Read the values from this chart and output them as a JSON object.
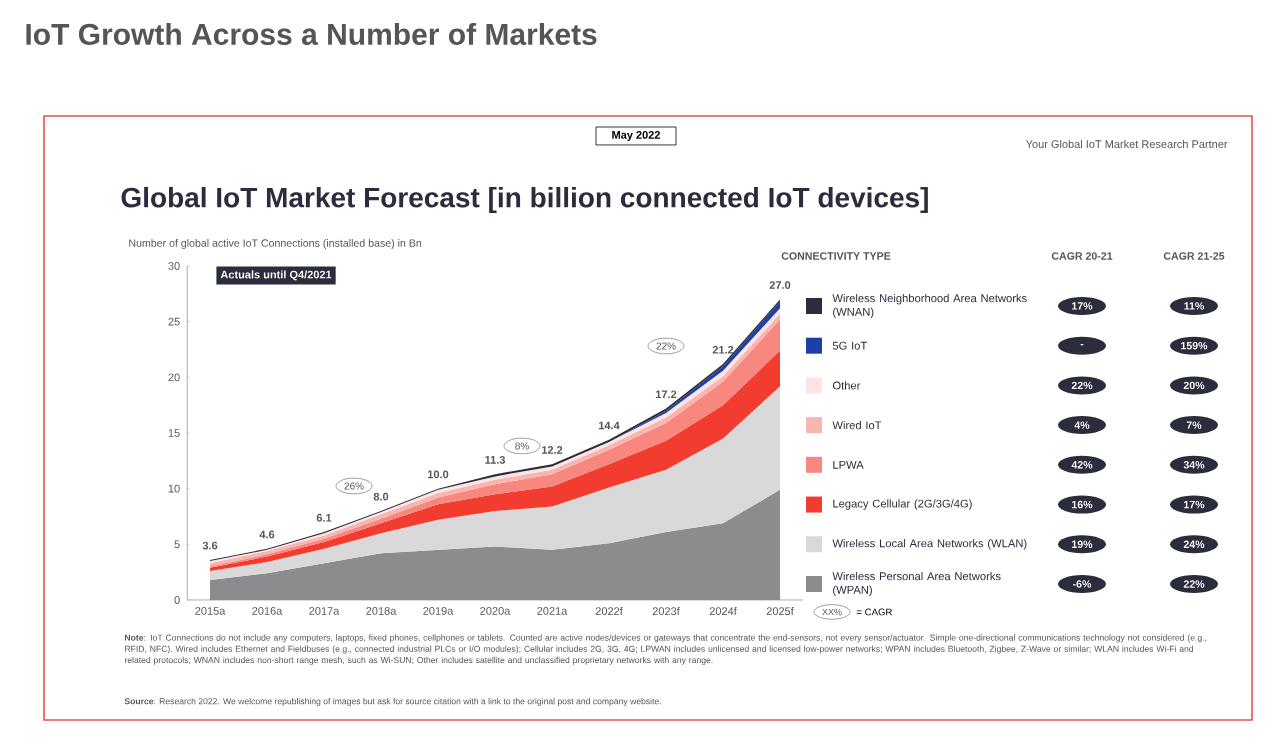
{
  "chart_data": [
    {
      "type": "area",
      "stacked": true,
      "title": "IoT Growth Across a Number of Markets",
      "subtitle": "Global IoT Market Forecast [in billion connected IoT devices]",
      "ylabel": "Number of global active IoT Connections (installed base) in Bn",
      "legend_title": "CONNECTIVITY TYPE",
      "legend": "right",
      "categories": [
        "2015a",
        "2016a",
        "2017a",
        "2018a",
        "2019a",
        "2020a",
        "2021a",
        "2022f",
        "2023f",
        "2024f",
        "2025f"
      ],
      "ylim": [
        0,
        30
      ],
      "yticks": [
        0,
        5,
        10,
        15,
        20,
        25,
        30
      ],
      "series": [
        {
          "name": "Wireless Personal Area Networks (WPAN)",
          "color": "#8c8c8e",
          "values": [
            1.8,
            2.4,
            3.3,
            4.2,
            4.5,
            4.8,
            4.5,
            5.1,
            6.1,
            6.9,
            9.9
          ]
        },
        {
          "name": "Wireless Local Area Networks (WLAN)",
          "color": "#d9d9d9",
          "values": [
            0.8,
            1.0,
            1.3,
            1.8,
            2.7,
            3.2,
            3.9,
            5.0,
            5.6,
            7.6,
            9.3
          ]
        },
        {
          "name": "Legacy Cellular (2G/3G/4G)",
          "color": "#f23c2f",
          "values": [
            0.3,
            0.5,
            0.6,
            0.9,
            1.4,
            1.5,
            1.8,
            2.1,
            2.6,
            3.0,
            3.2
          ]
        },
        {
          "name": "LPWA",
          "color": "#f7877f",
          "values": [
            0.1,
            0.2,
            0.3,
            0.4,
            0.6,
            0.9,
            1.1,
            1.3,
            1.6,
            2.1,
            2.8
          ]
        },
        {
          "name": "Wired IoT",
          "color": "#f9b5b0",
          "values": [
            0.3,
            0.3,
            0.3,
            0.4,
            0.4,
            0.4,
            0.4,
            0.4,
            0.5,
            0.5,
            0.5
          ]
        },
        {
          "name": "Other",
          "color": "#fde4e4",
          "values": [
            0.2,
            0.1,
            0.2,
            0.2,
            0.3,
            0.3,
            0.3,
            0.3,
            0.4,
            0.5,
            0.5
          ]
        },
        {
          "name": "5G IoT",
          "color": "#1f3fa8",
          "values": [
            0.0,
            0.0,
            0.0,
            0.0,
            0.0,
            0.0,
            0.0,
            0.0,
            0.2,
            0.4,
            0.6
          ]
        },
        {
          "name": "Wireless Neighborhood Area Networks (WNAN)",
          "color": "#2b2d3c",
          "values": [
            0.1,
            0.1,
            0.1,
            0.1,
            0.1,
            0.2,
            0.2,
            0.2,
            0.2,
            0.2,
            0.2
          ]
        }
      ],
      "totals": [
        "3.6",
        "4.6",
        "6.1",
        "8.0",
        "10.0",
        "11.3",
        "12.2",
        "14.4",
        "17.2",
        "21.2",
        "27.0"
      ],
      "annotations": [
        "Actuals until Q4/2021",
        "May 2022",
        "Your Global IoT Market Research Partner",
        "**Note**: IoT Connections do not include any computers, laptops, fixed phones, cellphones or tablets. Counted are active nodes/devices or gateways that concentrate the end-sensors, not every sensor/actuator. Simple one-directional communications technology not considered (e.g., RFID, NFC). Wired includes Ethernet and Fieldbuses (e.g., connected industrial PLCs or I/O modules); Cellular includes 2G, 3G, 4G; LPWAN includes unlicensed and licensed low-power networks; WPAN includes Bluetooth, Zigbee, Z-Wave or similar; WLAN includes Wi-Fi and related protocols; WNAN includes non-short range mesh, such as Wi-SUN; Other includes satellite and unclassified proprietary networks with any range.",
        "**Source**: Research 2022. We welcome republishing of images but ask for source citation with a link to the original post and company website.",
        "XX%",
        "= CAGR",
        "26%",
        "8%",
        "22%"
      ]
    },
    {
      "type": "other",
      "categories": [
        "CAGR 20-21",
        "CAGR 21-25"
      ],
      "annotations": [
        "17%",
        "11%",
        "-",
        "159%",
        "22%",
        "20%",
        "4%",
        "7%",
        "42%",
        "34%",
        "16%",
        "17%",
        "19%",
        "24%",
        "-6%",
        "22%"
      ]
    }
  ]
}
